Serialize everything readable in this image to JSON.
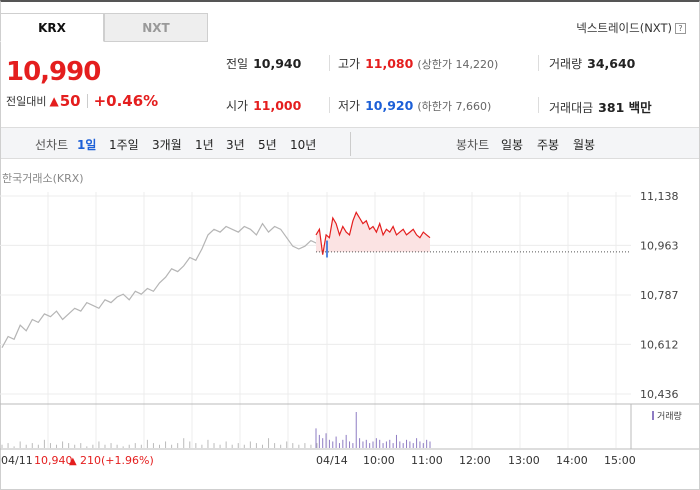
{
  "tabs": [
    {
      "label": "KRX",
      "active": true
    },
    {
      "label": "NXT",
      "active": false
    }
  ],
  "nxt_link": {
    "label": "넥스트레이드(NXT)",
    "help": "?"
  },
  "price": {
    "current": "10,990",
    "change_label": "전일대비",
    "change_amount": "50",
    "change_percent": "+0.46%"
  },
  "stats": {
    "prev_close": {
      "label": "전일",
      "value": "10,940"
    },
    "high": {
      "label": "고가",
      "value": "11,080",
      "sub": "(상한가 14,220)"
    },
    "volume": {
      "label": "거래량",
      "value": "34,640"
    },
    "open": {
      "label": "시가",
      "value": "11,000"
    },
    "low": {
      "label": "저가",
      "value": "10,920",
      "sub": "(하한가 7,660)"
    },
    "trade_amount": {
      "label": "거래대금",
      "value": "381 백만"
    }
  },
  "period_bar": {
    "line_label": "선차트",
    "periods": [
      "1일",
      "1주일",
      "3개월",
      "1년",
      "3년",
      "5년",
      "10년"
    ],
    "active_period": "1일",
    "candle_label": "봉차트",
    "candle_periods": [
      "일봉",
      "주봉",
      "월봉"
    ]
  },
  "exchange_label": "한국거래소(KRX)",
  "chart_data": {
    "type": "line",
    "y_ticks": [
      "11,138",
      "10,963",
      "10,787",
      "10,612",
      "10,436"
    ],
    "ylim": [
      10436,
      11138
    ],
    "prev_close": 10940,
    "x_labels": [
      "04/11",
      "04/14",
      "10:00",
      "11:00",
      "12:00",
      "13:00",
      "14:00",
      "15:00"
    ],
    "volume_legend": "거래량",
    "footer": {
      "date": "04/11",
      "price": "10,940",
      "change": "210",
      "percent": "(+1.96%)"
    },
    "prev_day_series": [
      10600,
      10640,
      10630,
      10680,
      10660,
      10700,
      10690,
      10720,
      10710,
      10730,
      10700,
      10720,
      10740,
      10730,
      10760,
      10750,
      10740,
      10770,
      10760,
      10780,
      10790,
      10770,
      10800,
      10790,
      10810,
      10800,
      10830,
      10850,
      10880,
      10870,
      10890,
      10920,
      10910,
      10950,
      11000,
      11020,
      11010,
      11030,
      11020,
      11010,
      11030,
      11020,
      11000,
      11040,
      11010,
      11030,
      11020,
      10990,
      10960,
      10950,
      10960,
      10980,
      10970
    ],
    "today_series": [
      11000,
      11020,
      10930,
      11000,
      10990,
      11060,
      11040,
      11000,
      11030,
      11010,
      11000,
      11050,
      11080,
      11060,
      11040,
      11050,
      11020,
      11030,
      11010,
      11040,
      11000,
      11020,
      11010,
      11030,
      11000,
      11010,
      11020,
      11000,
      11010,
      11020,
      11000,
      10990,
      11010,
      11000,
      10990
    ],
    "prev_volume": [
      2,
      3,
      1,
      4,
      2,
      3,
      2,
      5,
      3,
      2,
      4,
      3,
      2,
      3,
      1,
      2,
      4,
      2,
      3,
      2,
      1,
      2,
      3,
      2,
      5,
      3,
      2,
      4,
      2,
      3,
      6,
      4,
      3,
      2,
      5,
      3,
      2,
      4,
      2,
      3,
      2,
      4,
      3,
      2,
      6,
      3,
      2,
      4,
      3,
      2,
      3,
      2,
      3
    ],
    "today_volume": [
      12,
      8,
      6,
      9,
      5,
      4,
      7,
      3,
      5,
      8,
      4,
      3,
      22,
      6,
      4,
      5,
      3,
      4,
      6,
      5,
      3,
      4,
      5,
      3,
      8,
      4,
      3,
      5,
      4,
      3,
      6,
      4,
      3,
      5,
      4
    ]
  }
}
